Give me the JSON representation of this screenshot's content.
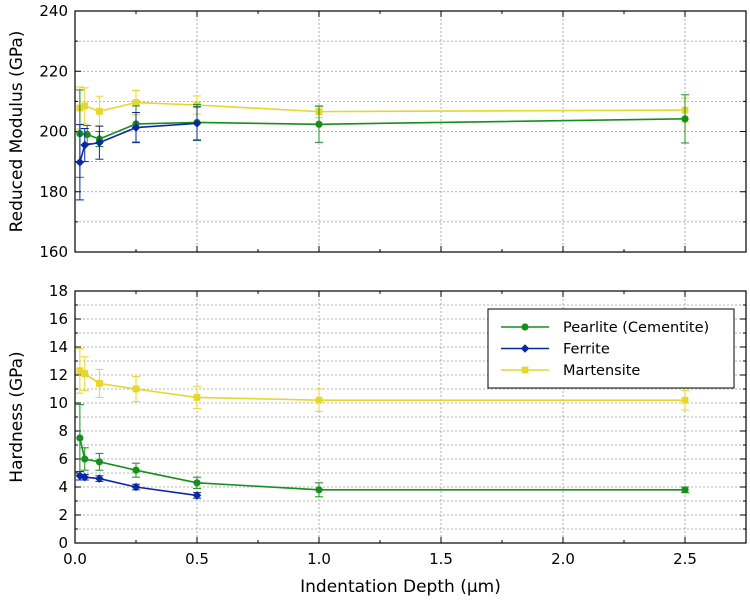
{
  "chart_data": [
    {
      "type": "line",
      "ylabel": "Reduced Modulus (GPa)",
      "xlabel": "",
      "ylim": [
        160,
        240
      ],
      "xlim": [
        0,
        2.75
      ],
      "yticks": [
        160,
        180,
        200,
        220,
        240
      ],
      "grid": true,
      "series": [
        {
          "name": "Pearlite (Cementite)",
          "color": "#16901a",
          "marker": "circle",
          "x": [
            0.02,
            0.05,
            0.1,
            0.25,
            0.5,
            1.0,
            2.5
          ],
          "y": [
            199.3,
            199.0,
            197.5,
            202.5,
            203.0,
            202.4,
            204.2
          ],
          "err": [
            14.5,
            3.0,
            2.5,
            6.0,
            6.0,
            6.0,
            8.0
          ]
        },
        {
          "name": "Ferrite",
          "color": "#0a27a8",
          "marker": "diamond",
          "x": [
            0.02,
            0.04,
            0.1,
            0.25,
            0.5
          ],
          "y": [
            189.8,
            195.5,
            196.3,
            201.3,
            202.7
          ],
          "err": [
            12.5,
            5.5,
            5.5,
            5.0,
            5.5
          ]
        },
        {
          "name": "Martensite",
          "color": "#e6d62e",
          "marker": "square",
          "x": [
            0.02,
            0.04,
            0.1,
            0.25,
            0.5,
            1.0,
            2.5
          ],
          "y": [
            207.8,
            208.5,
            206.7,
            209.6,
            208.8,
            206.6,
            207.1
          ],
          "err": [
            7.0,
            6.0,
            5.0,
            4.0,
            3.0,
            2.0,
            4.0
          ]
        }
      ]
    },
    {
      "type": "line",
      "ylabel": "Hardness (GPa)",
      "xlabel": "Indentation Depth (μm)",
      "ylim": [
        0,
        18
      ],
      "xlim": [
        0,
        2.75
      ],
      "yticks": [
        0,
        2,
        4,
        6,
        8,
        10,
        12,
        14,
        16,
        18
      ],
      "xticks": [
        0.0,
        0.5,
        1.0,
        1.5,
        2.0,
        2.5
      ],
      "xtick_labels": [
        "0.0",
        "0.5",
        "1.0",
        "1.5",
        "2.0",
        "2.5"
      ],
      "grid": true,
      "legend_position": "top-right",
      "series": [
        {
          "name": "Pearlite (Cementite)",
          "color": "#16901a",
          "marker": "circle",
          "x": [
            0.02,
            0.04,
            0.1,
            0.25,
            0.5,
            1.0,
            2.5
          ],
          "y": [
            7.5,
            6.0,
            5.8,
            5.2,
            4.3,
            3.8,
            3.8
          ],
          "err": [
            2.4,
            0.8,
            0.6,
            0.5,
            0.4,
            0.5,
            0.2
          ]
        },
        {
          "name": "Ferrite",
          "color": "#0a27a8",
          "marker": "diamond",
          "x": [
            0.02,
            0.04,
            0.1,
            0.25,
            0.5
          ],
          "y": [
            4.8,
            4.7,
            4.6,
            4.0,
            3.4
          ],
          "err": [
            0.3,
            0.2,
            0.2,
            0.2,
            0.2
          ]
        },
        {
          "name": "Martensite",
          "color": "#e6d62e",
          "marker": "square",
          "x": [
            0.02,
            0.04,
            0.1,
            0.25,
            0.5,
            1.0,
            2.5
          ],
          "y": [
            12.3,
            12.1,
            11.4,
            11.0,
            10.4,
            10.2,
            10.2
          ],
          "err": [
            1.6,
            1.2,
            1.0,
            0.9,
            0.8,
            0.8,
            0.7
          ]
        }
      ]
    }
  ]
}
